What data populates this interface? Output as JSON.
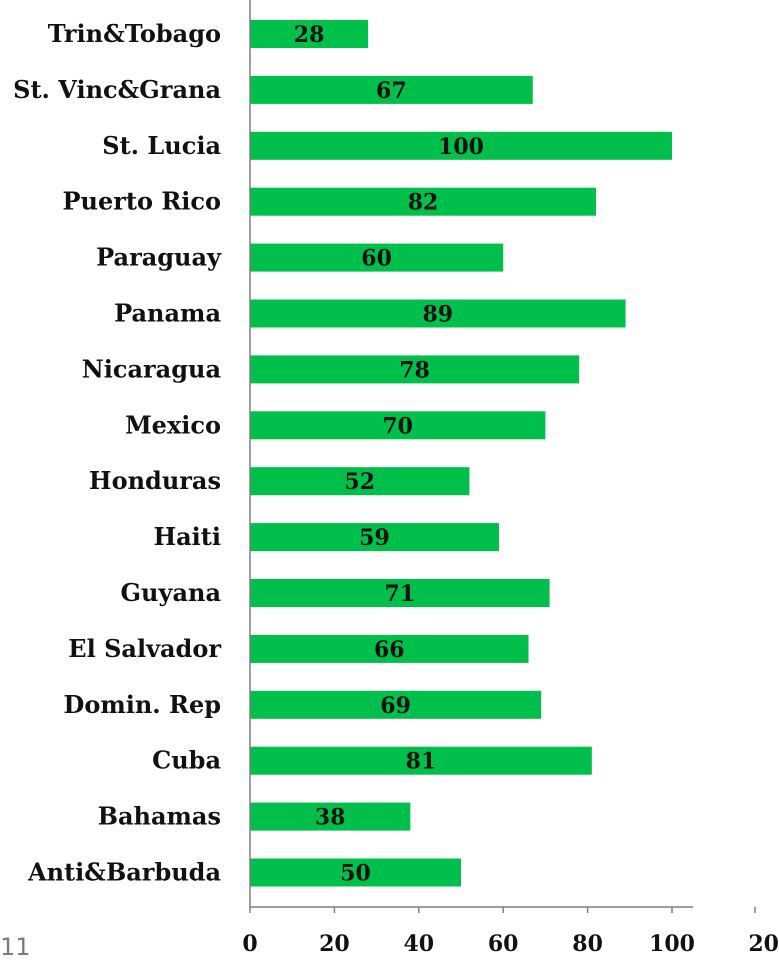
{
  "chart_data": {
    "type": "bar",
    "orientation": "horizontal",
    "categories": [
      "Trin&Tobago",
      "St. Vinc&Grana",
      "St. Lucia",
      "Puerto Rico",
      "Paraguay",
      "Panama",
      "Nicaragua",
      "Mexico",
      "Honduras",
      "Haiti",
      "Guyana",
      "El Salvador",
      "Domin. Rep",
      "Cuba",
      "Bahamas",
      "Anti&Barbuda"
    ],
    "values": [
      28,
      67,
      100,
      82,
      60,
      89,
      78,
      70,
      52,
      59,
      71,
      66,
      69,
      81,
      38,
      50
    ],
    "data_labels": [
      "28",
      "67",
      "100",
      "82",
      "60",
      "89",
      "78",
      "70",
      "52",
      "59",
      "71",
      "66",
      "69",
      "81",
      "38",
      "50"
    ],
    "x_ticks": [
      "0",
      "20",
      "40",
      "60",
      "80",
      "100",
      "20"
    ],
    "xlim": [
      0,
      120
    ],
    "grid": false,
    "legend": "none",
    "title": "",
    "xlabel": "",
    "ylabel": "",
    "bar_color": "#00c04b"
  },
  "page_number": "11"
}
